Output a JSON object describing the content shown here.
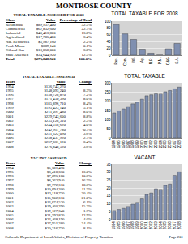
{
  "header": "MONTROSE COUNTY",
  "class_table": {
    "title": "TOTAL TAXABLE ASSESSED FOR 2008",
    "header": [
      "Class",
      "Value",
      "Percentage of Total"
    ],
    "rows": [
      [
        "Residential",
        "$89,937,400",
        "32.5%"
      ],
      [
        "Commercial",
        "$62,832,600",
        "22.7%"
      ],
      [
        "Industrial",
        "$46,413,820",
        "16.8%"
      ],
      [
        "Agricultural",
        "$17,785,480",
        "6.4%"
      ],
      [
        "Nat. Resources",
        "$5,987,160",
        "2.2%"
      ],
      [
        "Prod. Mines",
        "$389,140",
        "0.1%"
      ],
      [
        "Oil and Gas",
        "$18,858,000",
        "6.8%"
      ],
      [
        "State Assessed",
        "$34,644,920",
        "12.5%"
      ]
    ],
    "total": [
      "Total",
      "$276,848,520",
      "100.0%"
    ]
  },
  "total_table": {
    "title": "TOTAL TAXABLE ASSESSED",
    "header": [
      "Years",
      "Value",
      "Change"
    ],
    "rows": [
      [
        "1994",
        "$136,743,270",
        null
      ],
      [
        "1995",
        "$148,093,240",
        "8.3%"
      ],
      [
        "1996",
        "$158,728,870",
        "7.2%"
      ],
      [
        "1997",
        "$171,450,390",
        "8.0%"
      ],
      [
        "1998",
        "$185,896,710",
        "8.4%"
      ],
      [
        "1999",
        "$195,423,140",
        "5.1%"
      ],
      [
        "2000",
        "$211,097,480",
        "8.0%"
      ],
      [
        "2001",
        "$229,743,600",
        "8.8%"
      ],
      [
        "2002",
        "$235,128,310",
        "2.3%"
      ],
      [
        "2003",
        "$244,518,620",
        "4.0%"
      ],
      [
        "2004",
        "$242,911,780",
        "-0.7%"
      ],
      [
        "2005",
        "$251,622,090",
        "3.6%"
      ],
      [
        "2006",
        "$258,437,920",
        "2.7%"
      ],
      [
        "2007",
        "$267,331,120",
        "3.4%"
      ],
      [
        "2008",
        "$276,848,520",
        "3.6%"
      ]
    ]
  },
  "vacant_table": {
    "title": "VACANT ASSESSED",
    "header": [
      "Years",
      "Value",
      "Change"
    ],
    "rows": [
      [
        "1994",
        "$5,681,470",
        null
      ],
      [
        "1995",
        "$6,418,330",
        "13.0%"
      ],
      [
        "1996",
        "$7,095,180",
        "10.5%"
      ],
      [
        "1997",
        "$8,263,940",
        "16.5%"
      ],
      [
        "1998",
        "$9,772,610",
        "18.3%"
      ],
      [
        "1999",
        "$10,894,200",
        "11.5%"
      ],
      [
        "2000",
        "$13,118,750",
        "20.4%"
      ],
      [
        "2001",
        "$15,902,310",
        "21.2%"
      ],
      [
        "2002",
        "$16,874,530",
        "6.1%"
      ],
      [
        "2003",
        "$19,460,290",
        "15.3%"
      ],
      [
        "2004",
        "$19,127,640",
        "-1.7%"
      ],
      [
        "2005",
        "$21,593,870",
        "12.9%"
      ],
      [
        "2006",
        "$22,468,190",
        "4.0%"
      ],
      [
        "2007",
        "$27,951,380",
        "24.4%"
      ],
      [
        "2008",
        "$30,216,750",
        "8.1%"
      ]
    ]
  },
  "chart_data": [
    {
      "type": "bar",
      "title": "TOTAL TAXABLE FOR 2008",
      "categories": [
        "Res.",
        "Com.",
        "Ind.",
        "Ag.",
        "N.R.",
        "P.M.",
        "O&G",
        "S.A."
      ],
      "values": [
        89.9,
        62.8,
        46.4,
        17.8,
        6.0,
        0.4,
        18.9,
        34.6
      ],
      "color": "#7f8fb0",
      "ylim": [
        0,
        100
      ],
      "yticks": [
        0,
        20,
        40,
        60,
        80,
        100
      ],
      "grid": true
    },
    {
      "type": "bar",
      "title": "TOTAL TAXABLE",
      "categories": [
        "1994",
        "1995",
        "1996",
        "1997",
        "1998",
        "1999",
        "2000",
        "2001",
        "2002",
        "2003",
        "2004",
        "2005",
        "2006",
        "2007",
        "2008"
      ],
      "values": [
        136.7,
        148.1,
        158.7,
        171.5,
        185.9,
        195.4,
        211.1,
        229.7,
        235.1,
        244.5,
        242.9,
        251.6,
        258.4,
        267.3,
        276.8
      ],
      "color": "#7f8fb0",
      "ylim": [
        0,
        300
      ],
      "yticks": [
        0,
        50,
        100,
        150,
        200,
        250,
        300
      ],
      "grid": true
    },
    {
      "type": "bar",
      "title": "VACANT",
      "categories": [
        "1994",
        "1995",
        "1996",
        "1997",
        "1998",
        "1999",
        "2000",
        "2001",
        "2002",
        "2003",
        "2004",
        "2005",
        "2006",
        "2007",
        "2008"
      ],
      "values": [
        5.7,
        6.4,
        7.1,
        8.3,
        9.8,
        10.9,
        13.1,
        15.9,
        16.9,
        19.5,
        19.1,
        21.6,
        22.5,
        28.0,
        30.2
      ],
      "color": "#7f8fb0",
      "ylim": [
        0,
        35
      ],
      "yticks": [
        0,
        5,
        10,
        15,
        20,
        25,
        30,
        35
      ],
      "grid": true
    }
  ],
  "footer": {
    "left": "Colorado Department of Local Affairs, Division of Property Taxation",
    "right": "Page 201"
  }
}
